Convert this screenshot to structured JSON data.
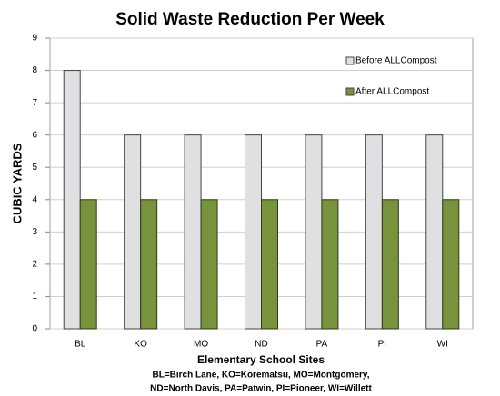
{
  "chart_data": {
    "type": "bar",
    "title": "Solid Waste Reduction Per Week",
    "x_label": "Elementary School Sites",
    "y_label": "CUBIC YARDS",
    "notes": [
      "BL=Birch Lane, KO=Korematsu, MO=Montgomery,",
      "ND=North Davis, PA=Patwin, PI=Pioneer, WI=Willett"
    ],
    "categories": [
      "BL",
      "KO",
      "MO",
      "ND",
      "PA",
      "PI",
      "WI"
    ],
    "series": [
      {
        "name": "Before ALLCompost",
        "color": "#e0e0e2",
        "values": [
          8,
          6,
          6,
          6,
          6,
          6,
          6
        ]
      },
      {
        "name": "After ALLCompost",
        "color": "#77933c",
        "values": [
          4,
          4,
          4,
          4,
          4,
          4,
          4
        ]
      }
    ],
    "ylim": [
      0,
      9
    ],
    "yticks": [
      0,
      1,
      2,
      3,
      4,
      5,
      6,
      7,
      8,
      9
    ],
    "grid": true,
    "legend": "top-right"
  }
}
